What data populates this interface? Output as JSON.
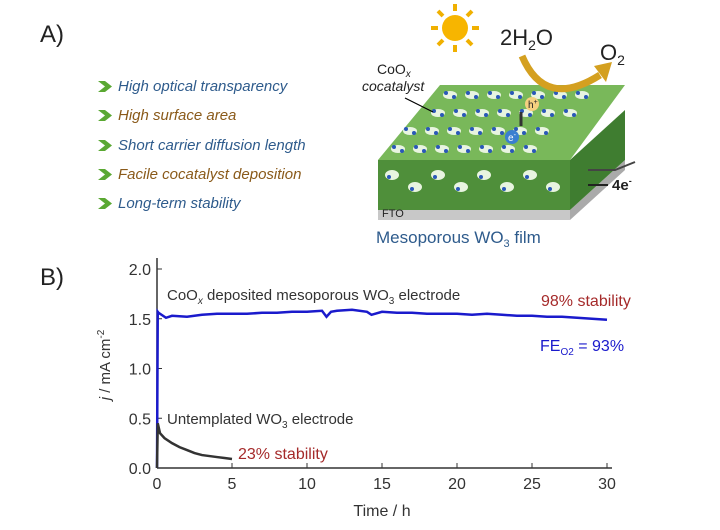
{
  "panel_a": {
    "label": "A)",
    "features": [
      {
        "text": "High optical transparency",
        "color": "#2e5b8c"
      },
      {
        "text": "High surface area",
        "color": "#8a5a1a"
      },
      {
        "text": "Short carrier diffusion length",
        "color": "#2e5b8c"
      },
      {
        "text": "Facile cocatalyst deposition",
        "color": "#8a5a1a"
      },
      {
        "text": "Long-term stability",
        "color": "#2e5b8c"
      }
    ],
    "cocatalyst_label_1": "CoO",
    "cocatalyst_sub": "x",
    "cocatalyst_label_2": "cocatalyst",
    "water": "2H",
    "water_sub": "2",
    "water_end": "O",
    "oxygen": "O",
    "oxygen_sub": "2",
    "hole": "h",
    "hole_sup": "+",
    "electron": "e",
    "electron_sup": "-",
    "electrons_out": "4e",
    "electrons_out_sup": "-",
    "substrate": "FTO",
    "film_label": "Mesoporous WO",
    "film_sub": "3",
    "film_label_end": " film",
    "icons": [
      "sun-icon",
      "curved-arrow-icon",
      "chevron-right-icon"
    ]
  },
  "chart_data": {
    "panel_label": "B)",
    "type": "line",
    "xlabel": "Time / h",
    "ylabel_italic": "j",
    "ylabel": " / mA cm",
    "ylabel_sup": "-2",
    "xlim": [
      0,
      30
    ],
    "ylim": [
      0,
      2.1
    ],
    "xticks": [
      "0",
      "5",
      "10",
      "15",
      "20",
      "25",
      "30"
    ],
    "yticks": [
      "0.0",
      "0.5",
      "1.0",
      "1.5",
      "2.0"
    ],
    "grid": false,
    "series": [
      {
        "color": "#1a1acc",
        "x": [
          0,
          0.05,
          0.1,
          0.3,
          0.6,
          1,
          2,
          3,
          4,
          5,
          6,
          7,
          8,
          9,
          10,
          11,
          11.3,
          11.6,
          12,
          13,
          14,
          14.3,
          15,
          16,
          17,
          18,
          19,
          20,
          21,
          22,
          23,
          24,
          25,
          26,
          27,
          28,
          29,
          30
        ],
        "y": [
          0,
          1.57,
          1.56,
          1.54,
          1.51,
          1.53,
          1.52,
          1.54,
          1.55,
          1.55,
          1.55,
          1.56,
          1.56,
          1.57,
          1.57,
          1.58,
          1.52,
          1.57,
          1.58,
          1.59,
          1.57,
          1.54,
          1.57,
          1.56,
          1.56,
          1.55,
          1.55,
          1.55,
          1.54,
          1.55,
          1.54,
          1.53,
          1.53,
          1.52,
          1.52,
          1.51,
          1.5,
          1.49
        ]
      },
      {
        "color": "#333333",
        "x": [
          0,
          0.05,
          0.2,
          0.5,
          1,
          1.5,
          2,
          2.5,
          3,
          3.5,
          4,
          4.5,
          5
        ],
        "y": [
          0,
          0.45,
          0.35,
          0.3,
          0.25,
          0.21,
          0.18,
          0.15,
          0.13,
          0.12,
          0.11,
          0.1,
          0.09
        ]
      }
    ],
    "annotations": {
      "coox_1": "CoO",
      "coox_sub": "x",
      "coox_2": " deposited mesoporous WO",
      "coox_sub2": "3",
      "coox_3": " electrode",
      "stab_98": "98% stability",
      "fe_1": "FE",
      "fe_sub": "O2",
      "fe_2": " = 93%",
      "untemp_1": "Untemplated WO",
      "untemp_sub": "3",
      "untemp_2": " electrode",
      "stab_23": "23% stability"
    }
  }
}
